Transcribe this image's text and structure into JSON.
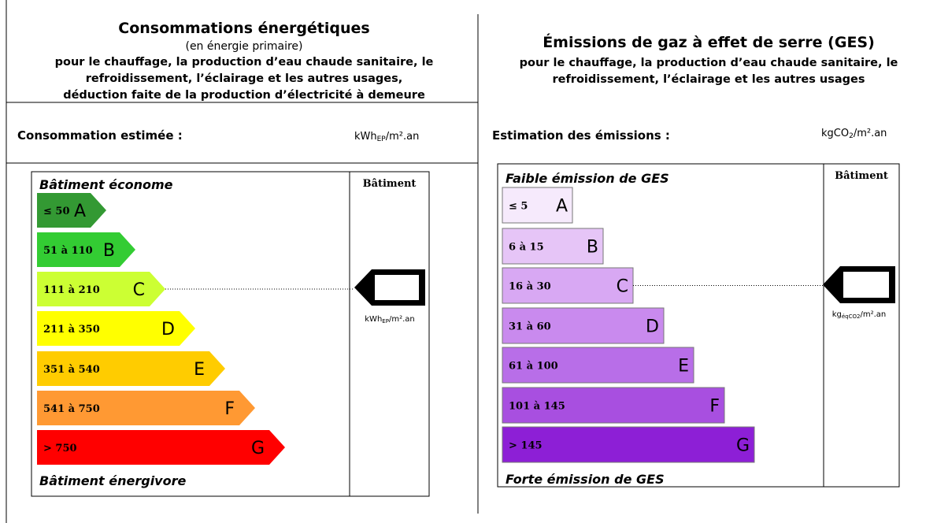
{
  "energy": {
    "title": "Consommations énergétiques",
    "subtitle": "(en énergie primaire)",
    "description": [
      "pour le chauffage, la production d’eau chaude sanitaire, le",
      "refroidissement, l’éclairage et les autres usages,",
      "déduction faite de la production d’électricité à demeure"
    ],
    "estimate_label": "Consommation estimée :",
    "unit": {
      "main": "kWh",
      "sub": "EP",
      "rest": "/m².an"
    },
    "scale_top": "Bâtiment économe",
    "scale_bottom": "Bâtiment énergivore",
    "column_header": "Bâtiment",
    "classes": [
      {
        "range": "≤ 50",
        "letter": "A",
        "color": "#339933"
      },
      {
        "range": "51 à 110",
        "letter": "B",
        "color": "#33cc33"
      },
      {
        "range": "111 à 210",
        "letter": "C",
        "color": "#ccff33"
      },
      {
        "range": "211 à 350",
        "letter": "D",
        "color": "#ffff00"
      },
      {
        "range": "351 à 540",
        "letter": "E",
        "color": "#ffcc00"
      },
      {
        "range": "541 à 750",
        "letter": "F",
        "color": "#ff9933"
      },
      {
        "range": "> 750",
        "letter": "G",
        "color": "#ff0000"
      }
    ],
    "pointer_class": "C",
    "pointer_unit": {
      "main": "kWh",
      "sub": "EP",
      "rest": "/m².an"
    }
  },
  "ges": {
    "title": "Émissions de gaz à effet de serre (GES)",
    "description": [
      "pour le chauffage, la production d’eau chaude sanitaire, le",
      "refroidissement, l’éclairage et les autres usages"
    ],
    "estimate_label": "Estimation des émissions :",
    "unit": {
      "main": "kgCO",
      "sub": "2",
      "rest": "/m².an"
    },
    "scale_top": "Faible émission de GES",
    "scale_bottom": "Forte émission de GES",
    "column_header": "Bâtiment",
    "classes": [
      {
        "range": "≤ 5",
        "letter": "A",
        "color": "#f6eafc"
      },
      {
        "range": "6 à 15",
        "letter": "B",
        "color": "#e6c5f7"
      },
      {
        "range": "16 à 30",
        "letter": "C",
        "color": "#d8a8f3"
      },
      {
        "range": "31 à 60",
        "letter": "D",
        "color": "#c98aee"
      },
      {
        "range": "61 à 100",
        "letter": "E",
        "color": "#b86ee8"
      },
      {
        "range": "101 à 145",
        "letter": "F",
        "color": "#a84fe0"
      },
      {
        "range": "> 145",
        "letter": "G",
        "color": "#8d1fd6"
      }
    ],
    "pointer_class": "C",
    "pointer_unit": {
      "main": "kg",
      "sub": "éqCO2",
      "rest": "/m².an"
    }
  }
}
